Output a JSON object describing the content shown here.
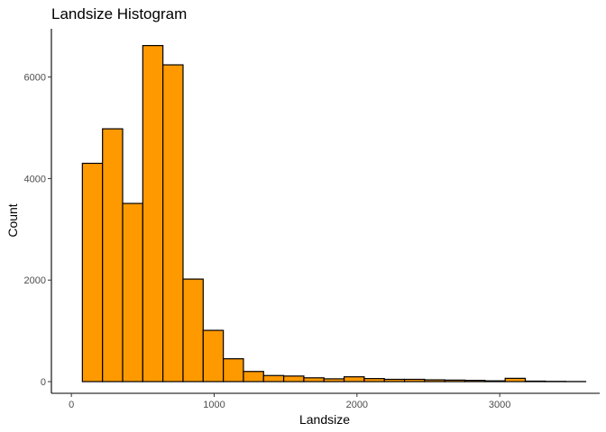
{
  "chart_data": {
    "type": "bar",
    "title": "Landsize Histogram",
    "xlabel": "Landsize",
    "ylabel": "Count",
    "xlim": [
      -140,
      3700
    ],
    "ylim": [
      -230,
      6950
    ],
    "x_ticks": [
      0,
      1000,
      2000,
      3000
    ],
    "y_ticks": [
      0,
      2000,
      4000,
      6000
    ],
    "bin_width": 141,
    "bins": [
      {
        "start": 77,
        "count": 4300
      },
      {
        "start": 218,
        "count": 4980
      },
      {
        "start": 359,
        "count": 3510
      },
      {
        "start": 500,
        "count": 6620
      },
      {
        "start": 641,
        "count": 6240
      },
      {
        "start": 782,
        "count": 2020
      },
      {
        "start": 923,
        "count": 1010
      },
      {
        "start": 1064,
        "count": 450
      },
      {
        "start": 1205,
        "count": 200
      },
      {
        "start": 1346,
        "count": 120
      },
      {
        "start": 1487,
        "count": 110
      },
      {
        "start": 1628,
        "count": 75
      },
      {
        "start": 1769,
        "count": 55
      },
      {
        "start": 1910,
        "count": 95
      },
      {
        "start": 2051,
        "count": 60
      },
      {
        "start": 2192,
        "count": 45
      },
      {
        "start": 2333,
        "count": 45
      },
      {
        "start": 2474,
        "count": 35
      },
      {
        "start": 2615,
        "count": 30
      },
      {
        "start": 2756,
        "count": 25
      },
      {
        "start": 2897,
        "count": 15
      },
      {
        "start": 3038,
        "count": 65
      },
      {
        "start": 3179,
        "count": 10
      },
      {
        "start": 3320,
        "count": 5
      },
      {
        "start": 3461,
        "count": 2
      }
    ],
    "fill_color": "#FF9900",
    "edge_color": "#000000",
    "grid": false,
    "legend": "none"
  }
}
